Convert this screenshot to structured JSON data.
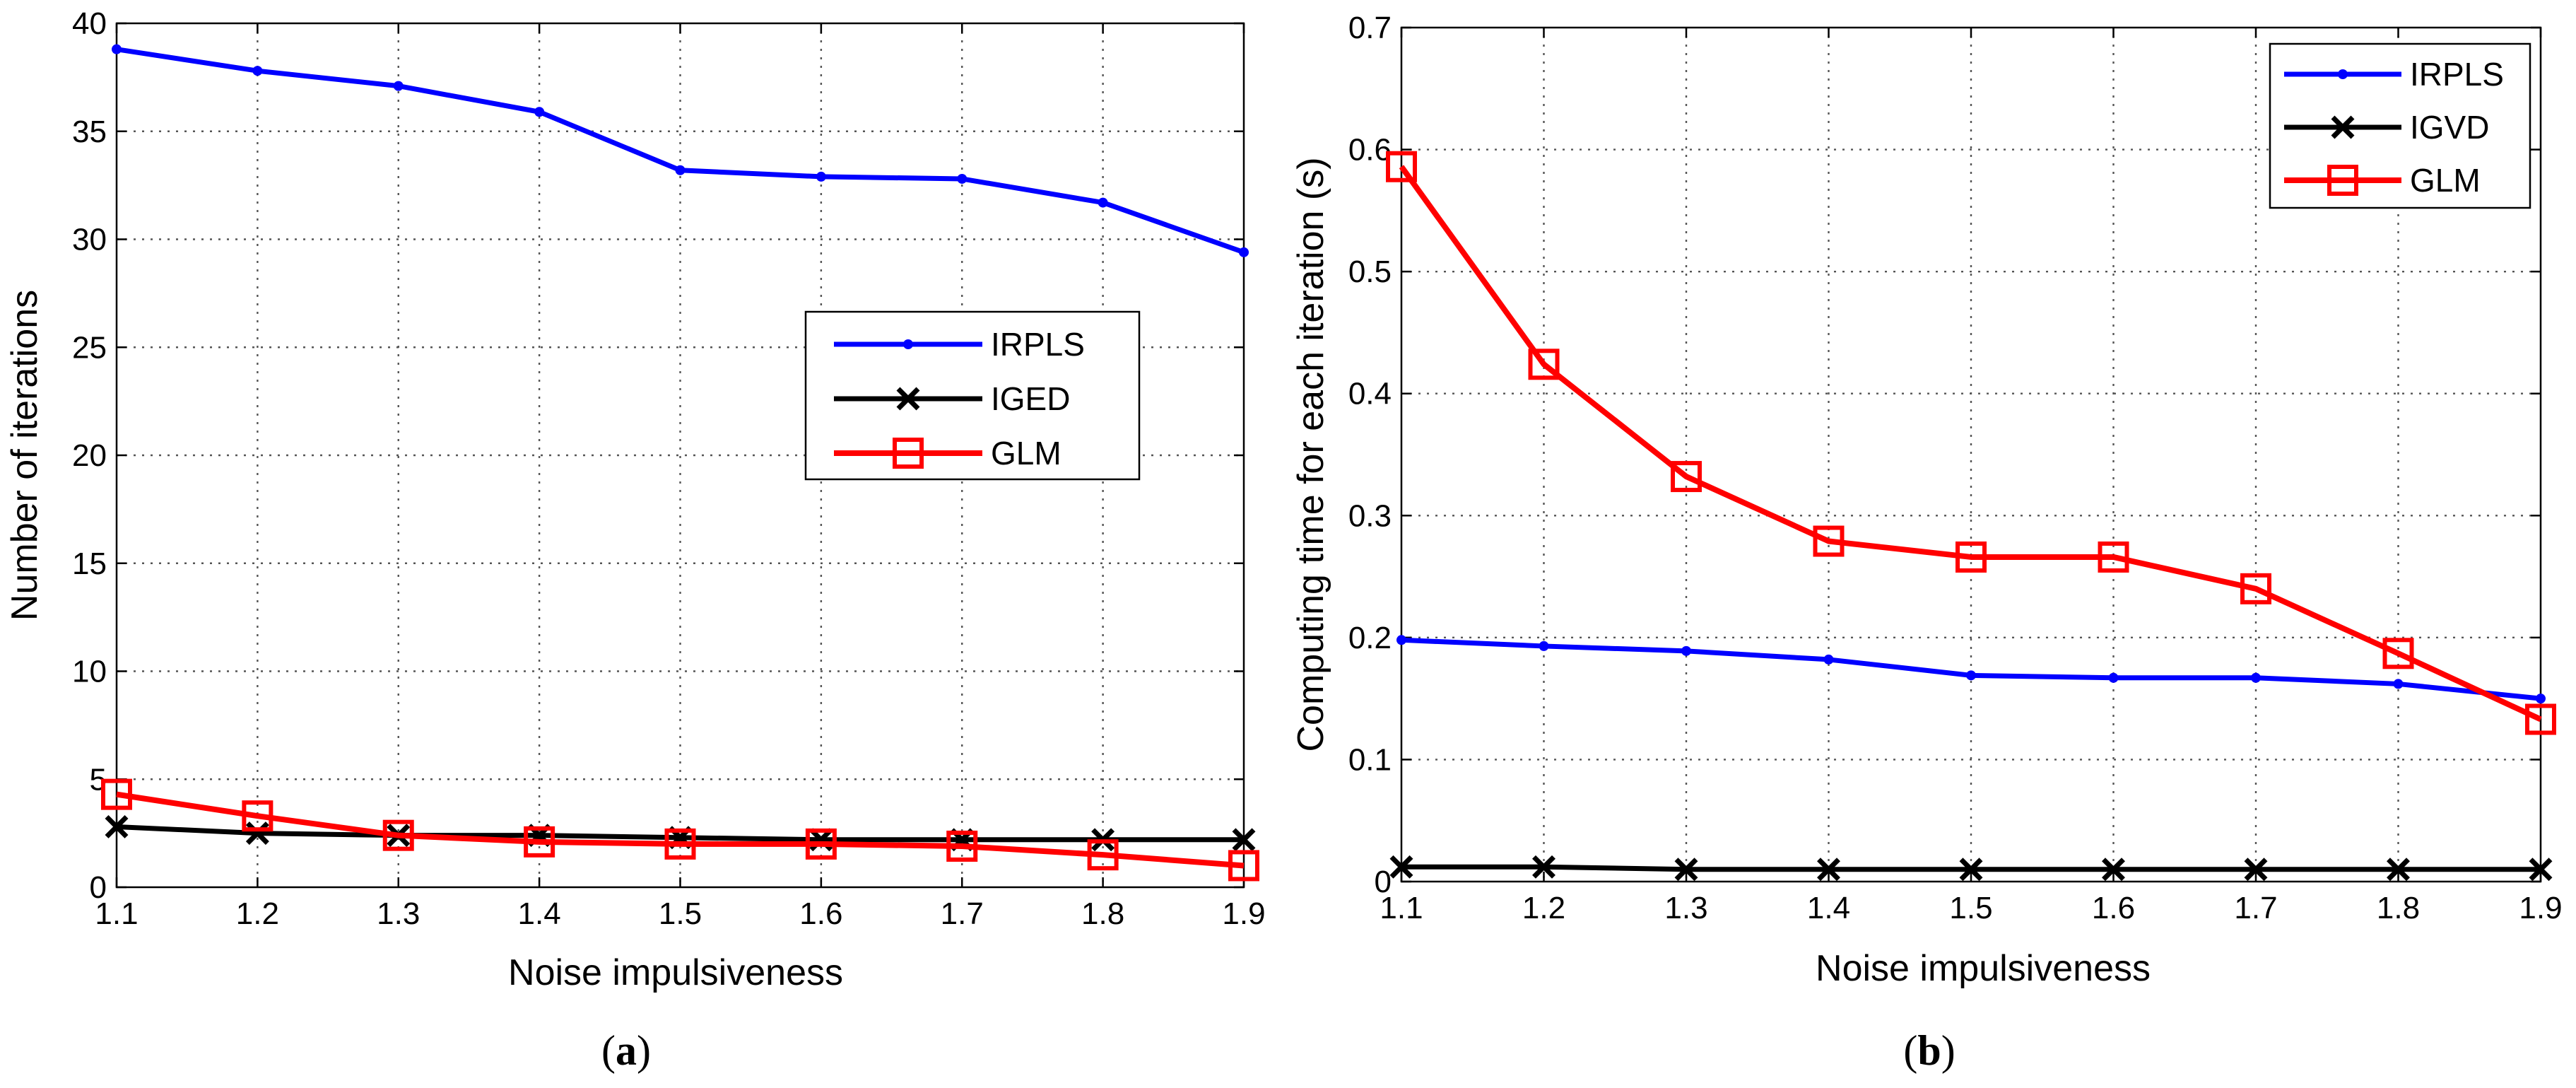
{
  "chart_data": [
    {
      "type": "line",
      "panel_label": "a",
      "xlabel": "Noise impulsiveness",
      "ylabel": "Number of iterations",
      "xlim": [
        1.1,
        1.9
      ],
      "ylim": [
        0,
        40
      ],
      "xticks": [
        "1.1",
        "1.2",
        "1.3",
        "1.4",
        "1.5",
        "1.6",
        "1.7",
        "1.8",
        "1.9"
      ],
      "yticks": [
        "0",
        "5",
        "10",
        "15",
        "20",
        "25",
        "30",
        "35",
        "40"
      ],
      "grid": true,
      "legend_position": "center-right",
      "x": [
        1.1,
        1.2,
        1.3,
        1.4,
        1.5,
        1.6,
        1.7,
        1.8,
        1.9
      ],
      "series": [
        {
          "name": "IRPLS",
          "color": "#0000ff",
          "marker": "dot",
          "values": [
            38.8,
            37.8,
            37.1,
            35.9,
            33.2,
            32.9,
            32.8,
            31.7,
            29.4
          ]
        },
        {
          "name": "IGED",
          "color": "#000000",
          "marker": "x",
          "values": [
            2.8,
            2.5,
            2.4,
            2.4,
            2.3,
            2.2,
            2.2,
            2.2,
            2.2
          ]
        },
        {
          "name": "GLM",
          "color": "#ff0000",
          "marker": "square",
          "values": [
            4.3,
            3.3,
            2.4,
            2.1,
            2.0,
            2.0,
            1.9,
            1.5,
            1.0
          ]
        }
      ]
    },
    {
      "type": "line",
      "panel_label": "b",
      "xlabel": "Noise impulsiveness",
      "ylabel": "Computing time for each iteration (s)",
      "xlim": [
        1.1,
        1.9
      ],
      "ylim": [
        0,
        0.7
      ],
      "xticks": [
        "1.1",
        "1.2",
        "1.3",
        "1.4",
        "1.5",
        "1.6",
        "1.7",
        "1.8",
        "1.9"
      ],
      "yticks": [
        "0",
        "0.1",
        "0.2",
        "0.3",
        "0.4",
        "0.5",
        "0.6",
        "0.7"
      ],
      "grid": true,
      "legend_position": "top-right",
      "x": [
        1.1,
        1.2,
        1.3,
        1.4,
        1.5,
        1.6,
        1.7,
        1.8,
        1.9
      ],
      "series": [
        {
          "name": "IRPLS",
          "color": "#0000ff",
          "marker": "dot",
          "values": [
            0.198,
            0.193,
            0.189,
            0.182,
            0.169,
            0.167,
            0.167,
            0.162,
            0.15
          ]
        },
        {
          "name": "IGVD",
          "color": "#000000",
          "marker": "x",
          "values": [
            0.012,
            0.012,
            0.01,
            0.01,
            0.01,
            0.01,
            0.01,
            0.01,
            0.01
          ]
        },
        {
          "name": "GLM",
          "color": "#ff0000",
          "marker": "square",
          "values": [
            0.586,
            0.424,
            0.332,
            0.279,
            0.266,
            0.266,
            0.24,
            0.187,
            0.133
          ]
        }
      ]
    }
  ]
}
